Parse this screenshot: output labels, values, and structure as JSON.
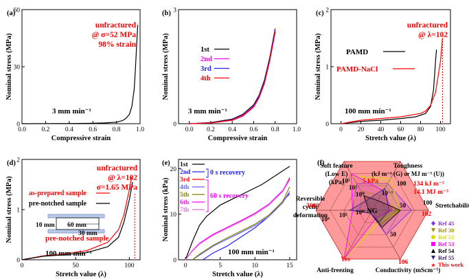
{
  "chart_data": [
    {
      "panel": "(a)",
      "type": "line",
      "xlabel": "Compressive strain",
      "ylabel": "Nominal stress (MPa)",
      "xlim": [
        0,
        1.0
      ],
      "ylim": [
        0,
        60
      ],
      "xticks": [
        0.0,
        0.2,
        0.4,
        0.6,
        0.8,
        1.0
      ],
      "yticks": [
        0,
        30,
        60
      ],
      "annotations": [
        "unfractured",
        "@ σ=52 MPa",
        "98% strain",
        "3 mm min⁻¹"
      ],
      "series": [
        {
          "x": [
            0,
            0.2,
            0.4,
            0.6,
            0.7,
            0.8,
            0.85,
            0.88,
            0.91,
            0.93,
            0.95,
            0.96,
            0.97,
            0.98
          ],
          "values": [
            0,
            0.05,
            0.1,
            0.2,
            0.4,
            0.8,
            1.6,
            2.8,
            5,
            9,
            18,
            28,
            40,
            52
          ]
        }
      ]
    },
    {
      "panel": "(b)",
      "type": "line",
      "xlabel": "Compressive strain",
      "ylabel": "Nominal stress (MPa)",
      "xlim": [
        -0.1,
        1.0
      ],
      "ylim": [
        0,
        3
      ],
      "xticks": [
        0.0,
        0.2,
        0.4,
        0.6,
        0.8,
        1.0
      ],
      "yticks": [
        0,
        3
      ],
      "annotations": [
        "3 mm min⁻¹"
      ],
      "series": [
        {
          "name": "1st",
          "color": "#000000",
          "x": [
            0,
            0.2,
            0.4,
            0.5,
            0.6,
            0.65,
            0.7,
            0.75,
            0.8
          ],
          "values": [
            0,
            0.03,
            0.12,
            0.25,
            0.5,
            0.75,
            1.15,
            1.75,
            2.5
          ]
        },
        {
          "name": "2nd",
          "color": "#ff00ff",
          "x": [
            0,
            0.2,
            0.4,
            0.5,
            0.6,
            0.65,
            0.7,
            0.75,
            0.8
          ],
          "values": [
            0,
            0.02,
            0.1,
            0.22,
            0.47,
            0.72,
            1.1,
            1.7,
            2.45
          ]
        },
        {
          "name": "3rd",
          "color": "#2020ff",
          "x": [
            0,
            0.2,
            0.4,
            0.5,
            0.6,
            0.65,
            0.7,
            0.75,
            0.8
          ],
          "values": [
            0,
            0.02,
            0.09,
            0.2,
            0.45,
            0.7,
            1.08,
            1.68,
            2.42
          ]
        },
        {
          "name": "4th",
          "color": "#ff0000",
          "x": [
            0,
            0.2,
            0.4,
            0.5,
            0.6,
            0.65,
            0.7,
            0.75,
            0.8
          ],
          "values": [
            0,
            0.02,
            0.09,
            0.2,
            0.44,
            0.68,
            1.06,
            1.66,
            2.4
          ]
        }
      ]
    },
    {
      "panel": "(c)",
      "type": "line",
      "xlabel": "Stretch value (λ)",
      "ylabel": "Nominal stress (MPa)",
      "xlim": [
        -10,
        110
      ],
      "ylim": [
        0,
        2
      ],
      "xticks": [
        0,
        20,
        40,
        60,
        80,
        100
      ],
      "yticks": [
        0,
        1,
        2
      ],
      "annotations": [
        "unfractured",
        "@ λ=102",
        "100 mm min⁻¹"
      ],
      "series": [
        {
          "name": "PAMD",
          "color": "#000000",
          "x": [
            0,
            20,
            40,
            60,
            75,
            85,
            90,
            93,
            95,
            96
          ],
          "values": [
            0,
            0.04,
            0.06,
            0.09,
            0.12,
            0.18,
            0.3,
            0.6,
            1.1,
            1.3
          ]
        },
        {
          "name": "PAMD-NaCl",
          "color": "#ff0000",
          "x": [
            0,
            20,
            40,
            60,
            80,
            85,
            90,
            95,
            100,
            102
          ],
          "values": [
            0,
            0.06,
            0.09,
            0.12,
            0.18,
            0.22,
            0.32,
            0.55,
            1.1,
            1.5
          ]
        }
      ]
    },
    {
      "panel": "(d)",
      "type": "line",
      "xlabel": "Stretch value (λ)",
      "ylabel": "Nominal stress (MPa)",
      "xlim": [
        0,
        110
      ],
      "ylim": [
        0,
        2
      ],
      "xticks": [
        0,
        50,
        100
      ],
      "yticks": [
        0,
        1,
        2
      ],
      "annotations": [
        "unfractured",
        "@ λ=102",
        "σ=1.65 MPa",
        "pre-notched sample",
        "100 mm min⁻¹",
        "60 mm",
        "10 mm",
        "30 mm"
      ],
      "series": [
        {
          "name": "as-prepared sample",
          "color": "#ff0000",
          "x": [
            0,
            20,
            40,
            60,
            80,
            90,
            95,
            100,
            102
          ],
          "values": [
            0,
            0.08,
            0.12,
            0.18,
            0.35,
            0.6,
            0.9,
            1.4,
            1.65
          ]
        },
        {
          "name": "pre-notched sample",
          "color": "#000000",
          "x": [
            0,
            20,
            40,
            60,
            80,
            90,
            95,
            100,
            103
          ],
          "values": [
            0,
            0.07,
            0.1,
            0.14,
            0.26,
            0.45,
            0.75,
            1.2,
            1.55
          ]
        }
      ]
    },
    {
      "panel": "(e)",
      "type": "line",
      "xlabel": "Stretch value (λ)",
      "ylabel": "Nominal stress (kPa)",
      "xlim": [
        -1,
        16
      ],
      "ylim": [
        0,
        22
      ],
      "xticks": [
        0,
        5,
        10,
        15
      ],
      "yticks": [
        0,
        10,
        20
      ],
      "annotations": [
        "0 s recovery",
        "60 s recovery",
        "100 mm min⁻¹"
      ],
      "series": [
        {
          "name": "1st",
          "color": "#000000",
          "x": [
            0,
            1,
            2,
            3,
            5,
            7,
            9,
            11,
            13,
            15
          ],
          "values": [
            0,
            4,
            7.5,
            9.5,
            12,
            13.5,
            15,
            16.5,
            18.5,
            20.5
          ]
        },
        {
          "name": "2nd",
          "color": "#2020ff",
          "x": [
            2.5,
            4,
            6,
            8,
            10,
            12,
            13.5,
            15
          ],
          "values": [
            0,
            1.5,
            3,
            5,
            7,
            9.5,
            12,
            14.5
          ]
        },
        {
          "name": "3rd",
          "color": "#ff0000",
          "x": [
            0,
            1,
            2,
            4,
            6,
            8,
            10,
            12,
            14,
            15
          ],
          "values": [
            0,
            2,
            3.5,
            5.5,
            7,
            8.5,
            10,
            12,
            15,
            18
          ]
        },
        {
          "name": "4th",
          "color": "#6060ff",
          "x": [
            1,
            2,
            4,
            6,
            8,
            10,
            12,
            14,
            15
          ],
          "values": [
            0,
            1,
            3,
            4.5,
            6,
            7.5,
            9.5,
            12.5,
            15
          ]
        },
        {
          "name": "5th",
          "color": "#808000",
          "x": [
            1,
            2,
            4,
            6,
            8,
            10,
            12,
            14,
            15
          ],
          "values": [
            0,
            1.2,
            3.2,
            4.8,
            6.3,
            7.8,
            9.8,
            12.8,
            16
          ]
        },
        {
          "name": "6th",
          "color": "#ff00ff",
          "x": [
            0,
            1,
            2,
            4,
            6,
            8,
            10,
            12,
            14,
            15
          ],
          "values": [
            0,
            2,
            3.6,
            5.6,
            7.1,
            8.6,
            10.2,
            12.2,
            15.2,
            17.8
          ]
        },
        {
          "name": "7th",
          "color": "#e070e0",
          "x": [
            0,
            1,
            2,
            4,
            6,
            8,
            10,
            12,
            14,
            15
          ],
          "values": [
            0,
            1.9,
            3.4,
            5.4,
            6.9,
            8.4,
            10,
            12,
            15,
            17.5
          ]
        }
      ]
    },
    {
      "panel": "(f)",
      "type": "radar",
      "axes": [
        {
          "label": [
            "Toughness",
            "(kJ m⁻² (G) or MJ m⁻³ (U))"
          ],
          "ticks": [
            "100",
            "10⁻¹"
          ]
        },
        {
          "label": [
            "Stretchability"
          ],
          "ticks": [
            "100",
            "50"
          ]
        },
        {
          "label": [
            "Conductivity (mScm⁻¹)"
          ],
          "ticks": [
            "106",
            "50"
          ]
        },
        {
          "label": [
            "Anti-freezing"
          ],
          "ticks": [
            "Yes"
          ]
        },
        {
          "label": [
            "Reversible",
            "cyclic",
            "deformation"
          ],
          "ticks": [
            "3600",
            "10⁴",
            "10²",
            "10⁰"
          ]
        },
        {
          "label": [
            "Soft feature",
            "(Low E)",
            "(kPa)"
          ],
          "ticks": [
            "5 kPa",
            "10⁰",
            "10¹",
            "10²"
          ]
        }
      ],
      "center_label": "NG",
      "highlight_labels": [
        "5 kPa",
        "134 kJ m⁻²",
        "14.1 MJ m⁻³",
        "102",
        "106",
        "Yes",
        "3600"
      ],
      "series": [
        {
          "name": "Ref 45",
          "color": "#8a2be2",
          "marker": "diamond",
          "values": [
            0.55,
            0.7,
            0.5,
            0.0,
            0.35,
            0.55
          ]
        },
        {
          "name": "Ref 30",
          "color": "#a09000",
          "marker": "triangle-down",
          "values": [
            0.3,
            0.45,
            0.3,
            0.0,
            0.2,
            0.4
          ]
        },
        {
          "name": "Ref 52",
          "color": "#d8d800",
          "marker": "circle",
          "values": [
            0.65,
            0.5,
            0.25,
            1.0,
            0.3,
            0.7
          ]
        },
        {
          "name": "Ref 53",
          "color": "#ff00ff",
          "marker": "square",
          "values": [
            0.4,
            0.35,
            0.15,
            1.0,
            0.35,
            0.75
          ]
        },
        {
          "name": "Ref 54",
          "color": "#000000",
          "marker": "triangle",
          "values": [
            0.2,
            0.5,
            0.35,
            0.0,
            0.0,
            0.3
          ]
        },
        {
          "name": "Ref 55",
          "color": "#3a2080",
          "marker": "triangle-down",
          "values": [
            0.45,
            0.3,
            0.25,
            0.0,
            0.4,
            0.2
          ]
        },
        {
          "name": "This work",
          "color": "#ff0000",
          "marker": "star",
          "values": [
            1.0,
            1.0,
            1.0,
            1.0,
            1.0,
            1.0
          ]
        }
      ]
    }
  ]
}
